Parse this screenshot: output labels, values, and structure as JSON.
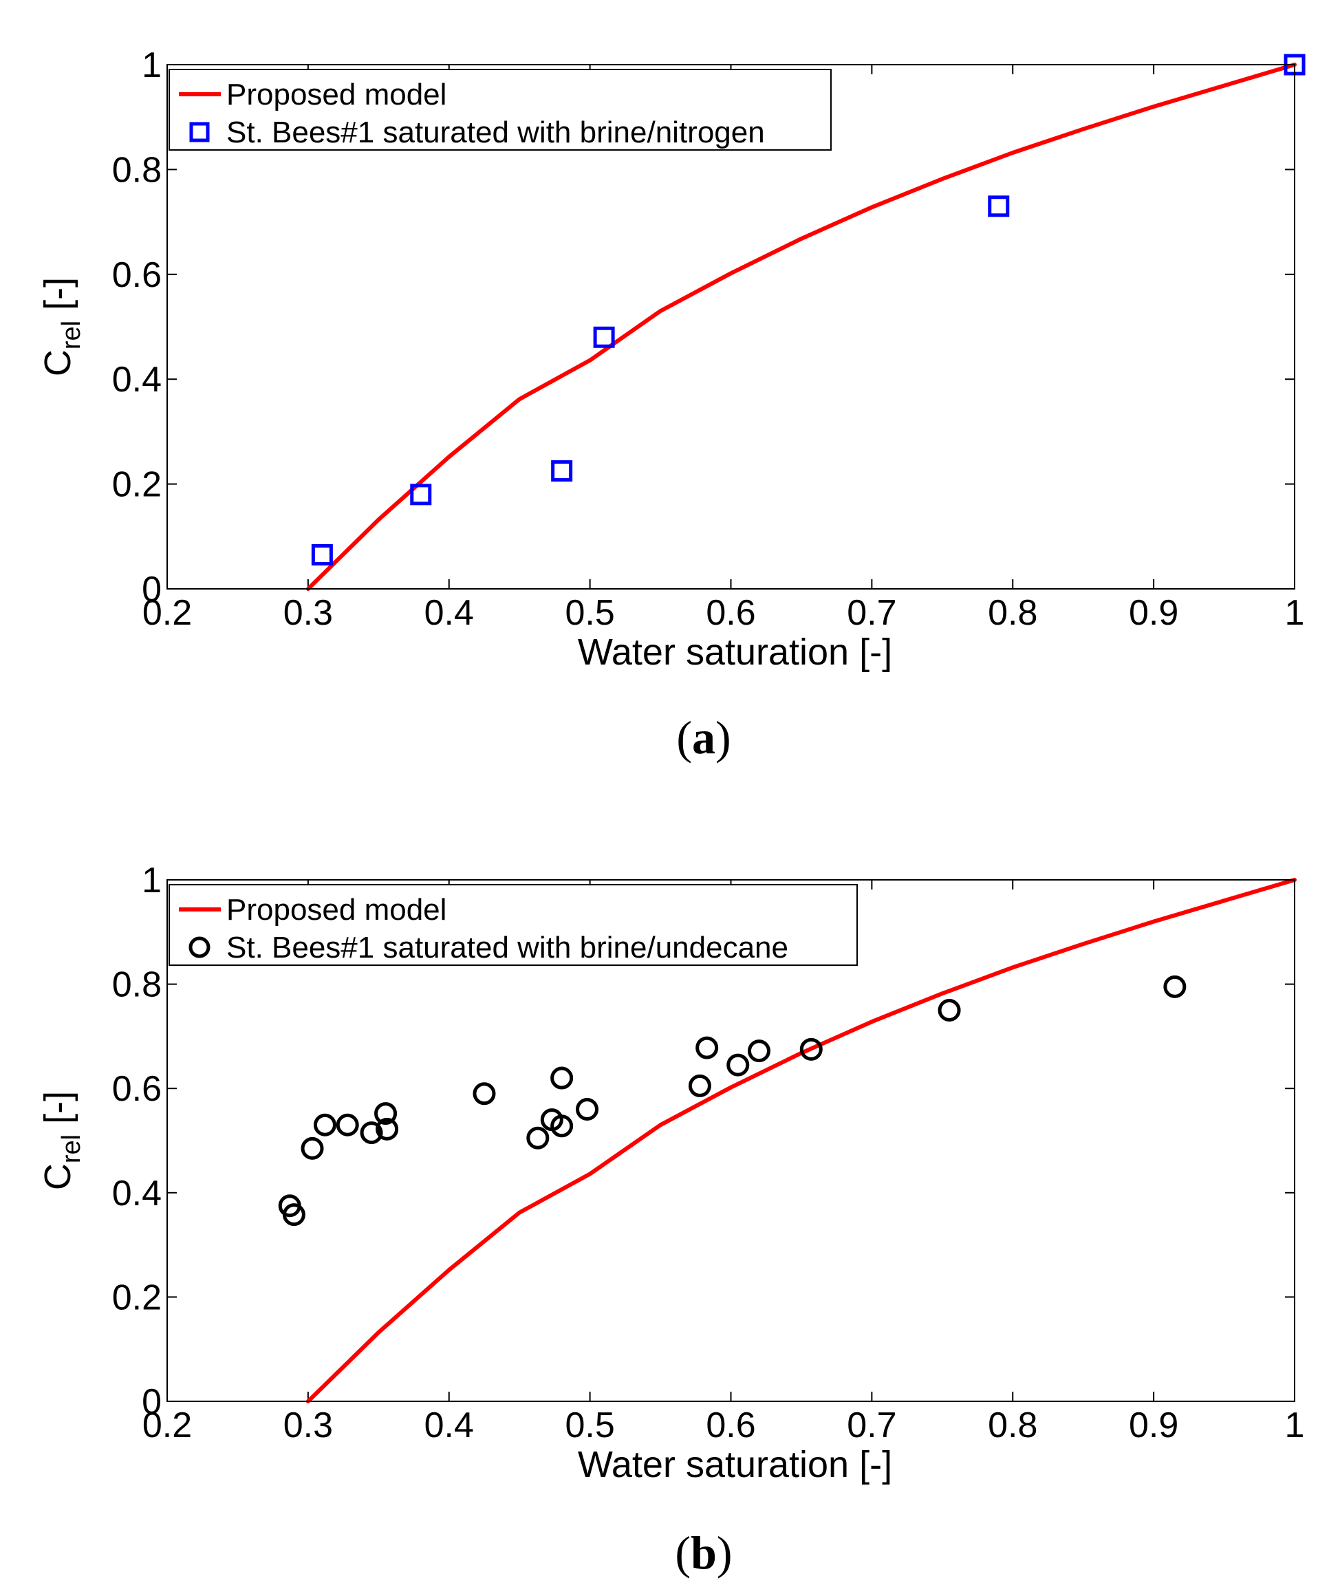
{
  "chart_data": [
    {
      "type": "scatter",
      "panel_tag": "a",
      "xlabel": "Water saturation [-]",
      "ylabel_main": "C",
      "ylabel_sub": "rel",
      "ylabel_suffix": " [-]",
      "xlim": [
        0.2,
        1.0
      ],
      "ylim": [
        0,
        1
      ],
      "xticks": [
        0.2,
        0.3,
        0.4,
        0.5,
        0.6,
        0.7,
        0.8,
        0.9,
        1.0
      ],
      "xtick_labels": [
        "0.2",
        "0.3",
        "0.4",
        "0.5",
        "0.6",
        "0.7",
        "0.8",
        "0.9",
        "1"
      ],
      "yticks": [
        0,
        0.2,
        0.4,
        0.6,
        0.8,
        1.0
      ],
      "ytick_labels": [
        "0",
        "0.2",
        "0.4",
        "0.6",
        "0.8",
        "1"
      ],
      "legend_position": "top-left",
      "model": {
        "name": "Proposed model",
        "color": "#ff0000",
        "x": [
          0.3,
          0.35,
          0.4,
          0.45,
          0.5,
          0.55,
          0.6,
          0.65,
          0.7,
          0.75,
          0.8,
          0.85,
          0.9,
          0.95,
          1.0
        ],
        "y": [
          0,
          0.132,
          0.252,
          0.362,
          0.436,
          0.53,
          0.602,
          0.668,
          0.728,
          0.782,
          0.832,
          0.877,
          0.92,
          0.96,
          1.0
        ]
      },
      "series": [
        {
          "name": "St. Bees#1 saturated with brine/nitrogen",
          "marker": "square",
          "color": "#0000ff",
          "x": [
            0.31,
            0.38,
            0.48,
            0.51,
            0.79,
            1.0
          ],
          "y": [
            0.065,
            0.18,
            0.225,
            0.48,
            0.73,
            1.0
          ]
        }
      ]
    },
    {
      "type": "scatter",
      "panel_tag": "b",
      "xlabel": "Water saturation [-]",
      "ylabel_main": "C",
      "ylabel_sub": "rel",
      "ylabel_suffix": " [-]",
      "xlim": [
        0.2,
        1.0
      ],
      "ylim": [
        0,
        1
      ],
      "xticks": [
        0.2,
        0.3,
        0.4,
        0.5,
        0.6,
        0.7,
        0.8,
        0.9,
        1.0
      ],
      "xtick_labels": [
        "0.2",
        "0.3",
        "0.4",
        "0.5",
        "0.6",
        "0.7",
        "0.8",
        "0.9",
        "1"
      ],
      "yticks": [
        0,
        0.2,
        0.4,
        0.6,
        0.8,
        1.0
      ],
      "ytick_labels": [
        "0",
        "0.2",
        "0.4",
        "0.6",
        "0.8",
        "1"
      ],
      "legend_position": "top-left",
      "model": {
        "name": "Proposed model",
        "color": "#ff0000",
        "x": [
          0.3,
          0.35,
          0.4,
          0.45,
          0.5,
          0.55,
          0.6,
          0.65,
          0.7,
          0.75,
          0.8,
          0.85,
          0.9,
          0.95,
          1.0
        ],
        "y": [
          0,
          0.132,
          0.252,
          0.362,
          0.436,
          0.53,
          0.602,
          0.668,
          0.728,
          0.782,
          0.832,
          0.877,
          0.92,
          0.96,
          1.0
        ]
      },
      "series": [
        {
          "name": "St. Bees#1 saturated with brine/undecane",
          "marker": "circle",
          "color": "#000000",
          "x": [
            0.287,
            0.29,
            0.303,
            0.312,
            0.328,
            0.345,
            0.355,
            0.356,
            0.425,
            0.463,
            0.473,
            0.48,
            0.48,
            0.498,
            0.578,
            0.583,
            0.605,
            0.62,
            0.657,
            0.755,
            0.915
          ],
          "y": [
            0.375,
            0.358,
            0.485,
            0.53,
            0.53,
            0.515,
            0.552,
            0.522,
            0.59,
            0.505,
            0.54,
            0.528,
            0.62,
            0.56,
            0.605,
            0.678,
            0.645,
            0.672,
            0.675,
            0.75,
            0.795
          ]
        }
      ]
    }
  ]
}
